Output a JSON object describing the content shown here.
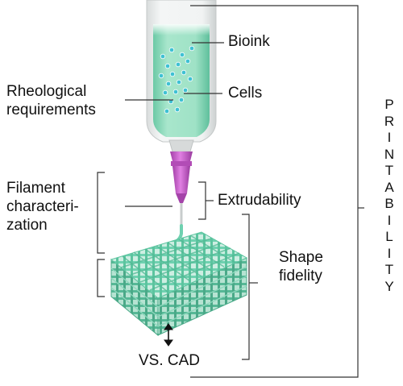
{
  "labels": {
    "bioink": "Bioink",
    "rheological": [
      "Rheological",
      "requirements"
    ],
    "cells": "Cells",
    "filament": [
      "Filament",
      "characteri-",
      "zation"
    ],
    "extrudability": "Extrudability",
    "shape_fidelity": [
      "Shape",
      "fidelity"
    ],
    "vs_cad": "VS. CAD"
  },
  "vertical_label": "PRINTABILITY",
  "colors": {
    "text": "#111111",
    "lines": "#333333",
    "bioink_fill": "#8fd9bb",
    "cells": "#3fc1d3",
    "needle": "#c85acb",
    "scaffold": "#7ed9bd"
  },
  "icons": {
    "arrow": "double-vertical-arrow-icon"
  }
}
